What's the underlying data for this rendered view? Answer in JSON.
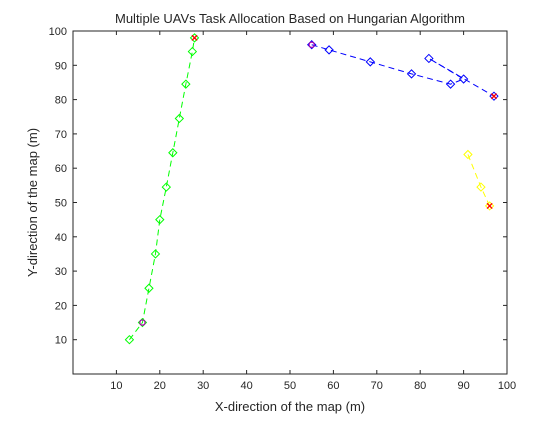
{
  "chart_data": {
    "type": "scatter",
    "title": "Multiple UAVs Task Allocation Based on Hungarian Algorithm",
    "xlabel": "X-direction of the map (m)",
    "ylabel": "Y-direction of the map (m)",
    "xlim": [
      0,
      100
    ],
    "ylim": [
      0,
      100
    ],
    "xticks": [
      10,
      20,
      30,
      40,
      50,
      60,
      70,
      80,
      90,
      100
    ],
    "yticks": [
      10,
      20,
      30,
      40,
      50,
      60,
      70,
      80,
      90,
      100
    ],
    "grid": false,
    "series": [
      {
        "color": "#00ff00",
        "points": [
          [
            13,
            10
          ],
          [
            16,
            15
          ],
          [
            17.5,
            25
          ],
          [
            19,
            35
          ],
          [
            20,
            45
          ],
          [
            21.5,
            54.5
          ],
          [
            23,
            64.5
          ],
          [
            24.5,
            74.5
          ],
          [
            26,
            84.5
          ],
          [
            27.5,
            94
          ],
          [
            28,
            98
          ]
        ],
        "start_marker": [
          16,
          15
        ],
        "end_marker": [
          28,
          98
        ]
      },
      {
        "color": "#0000ff",
        "points": [
          [
            55,
            96
          ],
          [
            59,
            94.5
          ],
          [
            68.5,
            91
          ],
          [
            78,
            87.5
          ],
          [
            87,
            84.5
          ],
          [
            90,
            86
          ],
          [
            82,
            92
          ],
          [
            97,
            81
          ]
        ],
        "start_marker": [
          55,
          96
        ],
        "end_marker": [
          97,
          81
        ]
      },
      {
        "color": "#ffff00",
        "points": [
          [
            91,
            64
          ],
          [
            94,
            54.5
          ],
          [
            96,
            49
          ]
        ],
        "end_marker": [
          96,
          49
        ]
      }
    ]
  }
}
